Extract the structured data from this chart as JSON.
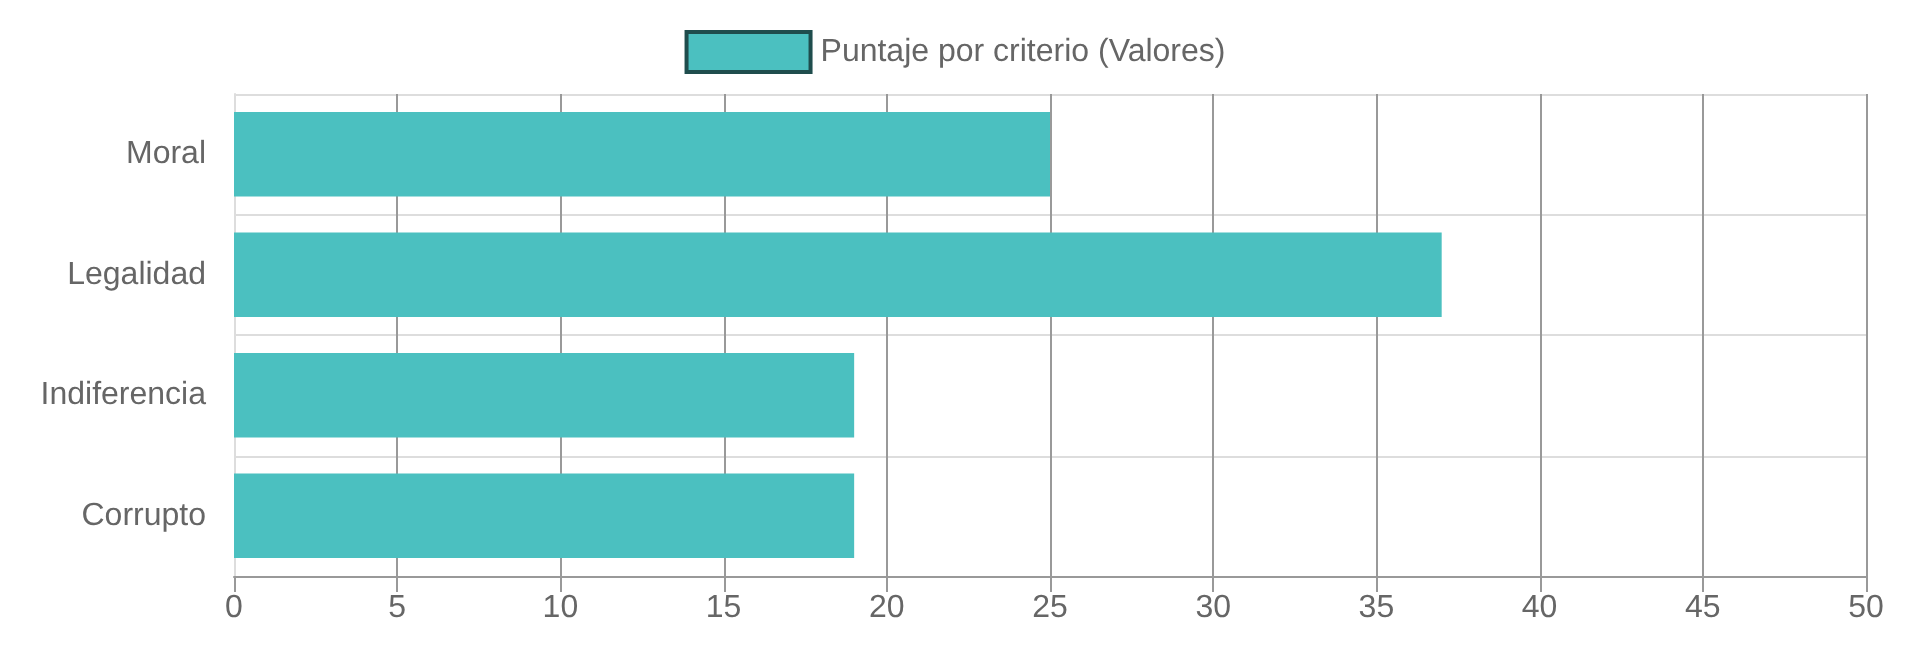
{
  "chart_data": {
    "type": "bar",
    "orientation": "horizontal",
    "categories": [
      "Moral",
      "Legalidad",
      "Indiferencia",
      "Corrupto"
    ],
    "series": [
      {
        "name": "Puntaje por criterio (Valores)",
        "color": "#4bc0c0",
        "values": [
          25,
          37,
          19,
          19
        ]
      }
    ],
    "xlim": [
      0,
      50
    ],
    "xticks": [
      0,
      5,
      10,
      15,
      20,
      25,
      30,
      35,
      40,
      45,
      50
    ],
    "grid": true,
    "legend": "top"
  }
}
